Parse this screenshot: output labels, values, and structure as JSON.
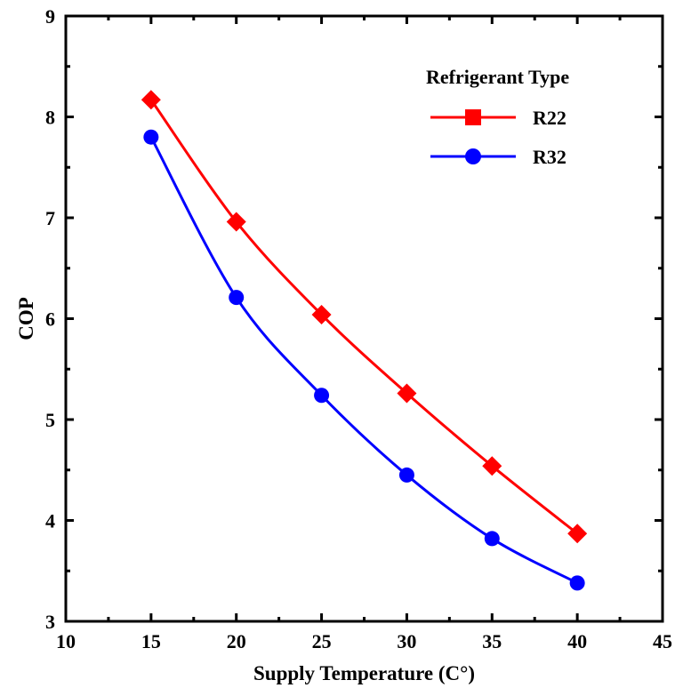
{
  "chart_data": {
    "type": "line",
    "title": "",
    "xlabel": "Supply Temperature (C°)",
    "ylabel": "COP",
    "xlim": [
      10,
      45
    ],
    "ylim": [
      3,
      9
    ],
    "xticks": [
      10,
      15,
      20,
      25,
      30,
      35,
      40,
      45
    ],
    "yticks": [
      3,
      4,
      5,
      6,
      7,
      8,
      9
    ],
    "grid": false,
    "legend": {
      "title": "Refrigerant Type",
      "position": "top-right"
    },
    "x": [
      15,
      20,
      25,
      30,
      35,
      40
    ],
    "series": [
      {
        "name": "R22",
        "color": "#ff0000",
        "marker": "diamond",
        "legend_marker": "square",
        "values": [
          8.17,
          6.96,
          6.04,
          5.26,
          4.54,
          3.87
        ]
      },
      {
        "name": "R32",
        "color": "#0000ff",
        "marker": "circle",
        "legend_marker": "circle",
        "values": [
          7.8,
          6.21,
          5.24,
          4.45,
          3.82,
          3.38
        ]
      }
    ]
  }
}
